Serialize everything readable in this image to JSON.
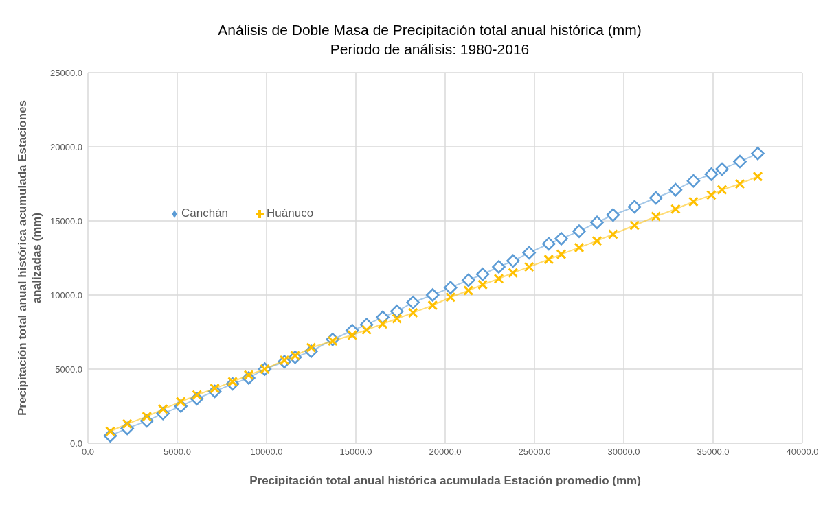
{
  "chart_data": {
    "type": "line",
    "title": "Análisis de Doble Masa de Precipitación total anual histórica (mm)",
    "subtitle": "Periodo de análisis: 1980-2016",
    "xlabel": "Precipitación total anual histórica acumulada Estación promedio (mm)",
    "ylabel": "Precipitación total anual histórica acumulada Estaciones analizadas (mm)",
    "x": [
      1250,
      2200,
      3300,
      4200,
      5200,
      6100,
      7100,
      8100,
      9000,
      9900,
      11000,
      11600,
      12500,
      13700,
      14800,
      15600,
      16500,
      17300,
      18200,
      19300,
      20300,
      21300,
      22100,
      23000,
      23800,
      24700,
      25800,
      26500,
      27500,
      28500,
      29400,
      30600,
      31800,
      32900,
      33900,
      34900,
      35500,
      36500,
      37500
    ],
    "series": [
      {
        "name": "Canchán",
        "color": "#5b9bd5",
        "marker": "diamond",
        "values": [
          500,
          1000,
          1500,
          2000,
          2500,
          3000,
          3500,
          4000,
          4400,
          5000,
          5500,
          5800,
          6200,
          7000,
          7600,
          8000,
          8500,
          8900,
          9500,
          10000,
          10500,
          11000,
          11400,
          11900,
          12300,
          12850,
          13450,
          13800,
          14300,
          14900,
          15400,
          15950,
          16550,
          17100,
          17700,
          18150,
          18500,
          19000,
          19550
        ]
      },
      {
        "name": "Huánuco",
        "color": "#ffc000",
        "marker": "cross",
        "values": [
          800,
          1300,
          1800,
          2300,
          2800,
          3250,
          3700,
          4150,
          4600,
          5000,
          5600,
          5900,
          6450,
          6900,
          7300,
          7650,
          8050,
          8400,
          8800,
          9300,
          9850,
          10300,
          10700,
          11100,
          11500,
          11900,
          12400,
          12750,
          13200,
          13650,
          14100,
          14700,
          15300,
          15800,
          16300,
          16750,
          17100,
          17500,
          18000
        ]
      }
    ],
    "xlim": [
      0,
      40000
    ],
    "xticks": [
      {
        "value": 0,
        "label": "0.0"
      },
      {
        "value": 5000,
        "label": "5000.0"
      },
      {
        "value": 10000,
        "label": "10000.0"
      },
      {
        "value": 15000,
        "label": "15000.0"
      },
      {
        "value": 20000,
        "label": "20000.0"
      },
      {
        "value": 25000,
        "label": "25000.0"
      },
      {
        "value": 30000,
        "label": "30000.0"
      },
      {
        "value": 35000,
        "label": "35000.0"
      },
      {
        "value": 40000,
        "label": "40000.0"
      }
    ],
    "ylim": [
      0,
      25000
    ],
    "yticks": [
      {
        "value": 0,
        "label": "0.0"
      },
      {
        "value": 5000,
        "label": "5000.0"
      },
      {
        "value": 10000,
        "label": "10000.0"
      },
      {
        "value": 15000,
        "label": "15000.0"
      },
      {
        "value": 20000,
        "label": "20000.0"
      },
      {
        "value": 25000,
        "label": "25000.0"
      }
    ],
    "grid": true,
    "legend": "top left",
    "line_style": "solid"
  }
}
